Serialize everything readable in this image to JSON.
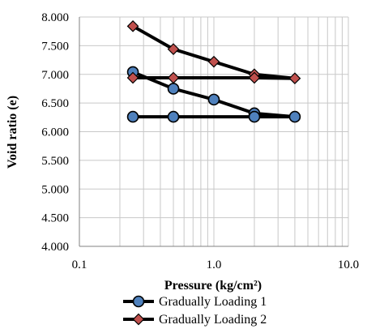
{
  "chart_data": {
    "type": "line",
    "xlabel": "Pressure (kg/cm²)",
    "ylabel": "Void ratio (e)",
    "x_scale": "log",
    "xlim": [
      0.1,
      10
    ],
    "ylim": [
      4.0,
      8.0
    ],
    "x_ticks": [
      "0.1",
      "1.0",
      "10.0"
    ],
    "y_ticks": [
      "4.000",
      "4.500",
      "5.000",
      "5.500",
      "6.000",
      "6.500",
      "7.000",
      "7.500",
      "8.000"
    ],
    "grid": true,
    "legend_position": "bottom",
    "series": [
      {
        "name": "Gradually Loading 1",
        "marker": "circle",
        "color": "#000000",
        "marker_fill": "#4f81bd",
        "points": [
          {
            "x": 0.25,
            "y": 7.04
          },
          {
            "x": 0.5,
            "y": 6.75
          },
          {
            "x": 1.0,
            "y": 6.56
          },
          {
            "x": 2.0,
            "y": 6.32
          },
          {
            "x": 4.0,
            "y": 6.26
          },
          {
            "x": 2.0,
            "y": 6.26
          },
          {
            "x": 0.5,
            "y": 6.26
          },
          {
            "x": 0.25,
            "y": 6.26
          }
        ]
      },
      {
        "name": "Gradually Loading 2",
        "marker": "diamond",
        "color": "#000000",
        "marker_fill": "#c0504d",
        "points": [
          {
            "x": 0.25,
            "y": 7.84
          },
          {
            "x": 0.5,
            "y": 7.44
          },
          {
            "x": 1.0,
            "y": 7.22
          },
          {
            "x": 2.0,
            "y": 7.0
          },
          {
            "x": 4.0,
            "y": 6.93
          },
          {
            "x": 2.0,
            "y": 6.94
          },
          {
            "x": 0.5,
            "y": 6.94
          },
          {
            "x": 0.25,
            "y": 6.94
          }
        ]
      }
    ]
  }
}
